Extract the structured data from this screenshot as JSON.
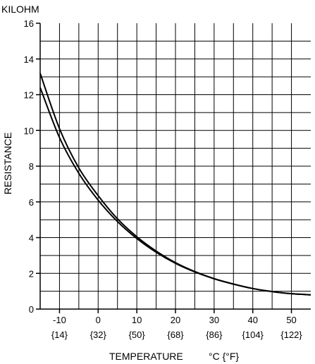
{
  "chart_data": {
    "type": "line",
    "unit_label": "KILOHM",
    "ylabel": "RESISTANCE",
    "xlabel": "TEMPERATURE",
    "xunit": "°C {°F}",
    "xlim": [
      -15,
      55
    ],
    "ylim": [
      0,
      16
    ],
    "grid": true,
    "x_ticks": [
      {
        "c": "-10",
        "f": "{14}"
      },
      {
        "c": "0",
        "f": "{32}"
      },
      {
        "c": "10",
        "f": "{50}"
      },
      {
        "c": "20",
        "f": "{68}"
      },
      {
        "c": "30",
        "f": "{86}"
      },
      {
        "c": "40",
        "f": "{104}"
      },
      {
        "c": "50",
        "f": "{122}"
      }
    ],
    "x_tick_values": [
      -10,
      0,
      10,
      20,
      30,
      40,
      50
    ],
    "y_ticks": [
      "0",
      "2",
      "4",
      "6",
      "8",
      "10",
      "12",
      "14",
      "16"
    ],
    "y_tick_values": [
      0,
      2,
      4,
      6,
      8,
      10,
      12,
      14,
      16
    ],
    "series": [
      {
        "x": [
          -15,
          -10,
          -5,
          0,
          5,
          10,
          15,
          20,
          25,
          30,
          35,
          40,
          45,
          50,
          55
        ],
        "y": [
          13.2,
          10.1,
          7.9,
          6.35,
          5.05,
          4.05,
          3.25,
          2.6,
          2.1,
          1.7,
          1.4,
          1.15,
          0.98,
          0.86,
          0.8
        ]
      },
      {
        "x": [
          -15,
          -10,
          -5,
          0,
          5,
          10,
          15,
          20,
          25,
          30,
          35,
          40,
          45,
          50,
          55
        ],
        "y": [
          12.4,
          9.6,
          7.6,
          6.1,
          4.9,
          3.95,
          3.18,
          2.56,
          2.08,
          1.7,
          1.4,
          1.15,
          0.98,
          0.86,
          0.8
        ]
      }
    ]
  }
}
